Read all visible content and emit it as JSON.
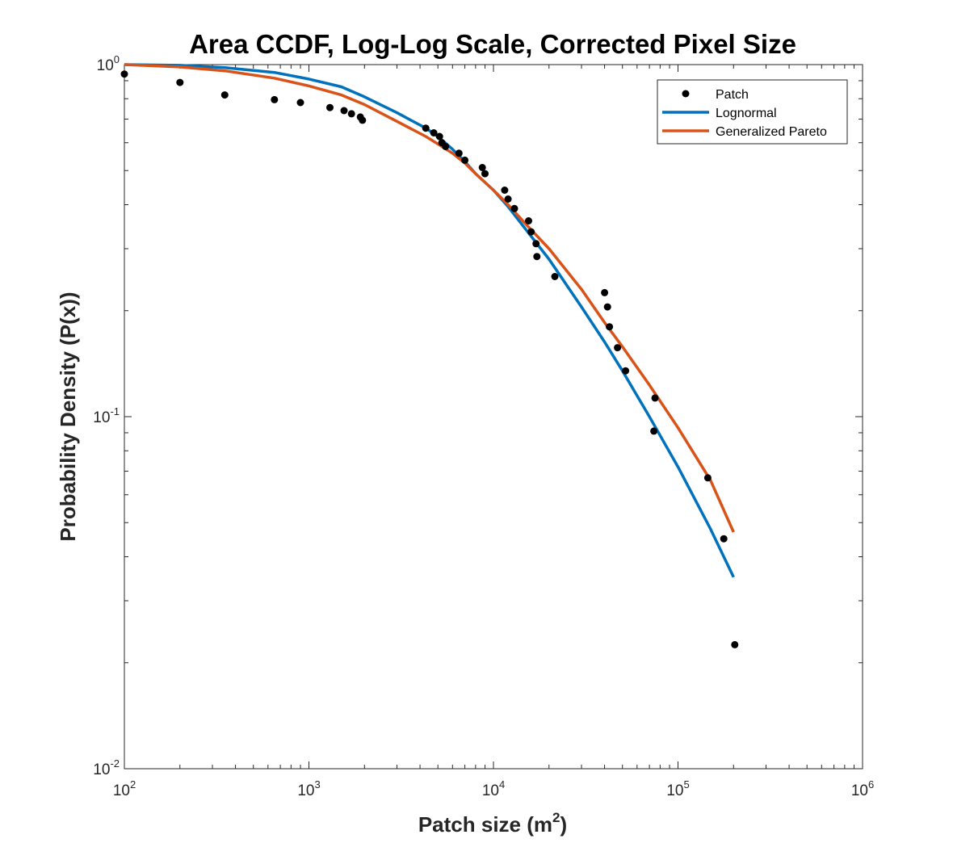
{
  "chart_data": {
    "type": "scatter",
    "title": "Area CCDF, Log-Log Scale, Corrected Pixel Size",
    "xlabel": {
      "text": "Patch size (m",
      "sup": "2",
      "tail": ")"
    },
    "ylabel": "Probability Density (P(x))",
    "xscale": "log",
    "yscale": "log",
    "xlim": [
      100,
      1000000
    ],
    "ylim": [
      0.01,
      1
    ],
    "x_ticks": [
      {
        "value": 100,
        "base": "10",
        "exp": "2"
      },
      {
        "value": 1000,
        "base": "10",
        "exp": "3"
      },
      {
        "value": 10000,
        "base": "10",
        "exp": "4"
      },
      {
        "value": 100000,
        "base": "10",
        "exp": "5"
      },
      {
        "value": 1000000,
        "base": "10",
        "exp": "6"
      }
    ],
    "y_ticks": [
      {
        "value": 0.01,
        "base": "10",
        "exp": "-2"
      },
      {
        "value": 0.1,
        "base": "10",
        "exp": "-1"
      },
      {
        "value": 1,
        "base": "10",
        "exp": "0"
      }
    ],
    "grid": false,
    "legend_position": "top-right",
    "series": [
      {
        "name": "Patch",
        "kind": "markers",
        "color": "#000000",
        "points": [
          [
            100,
            0.94
          ],
          [
            200,
            0.89
          ],
          [
            350,
            0.82
          ],
          [
            650,
            0.795
          ],
          [
            900,
            0.78
          ],
          [
            1300,
            0.755
          ],
          [
            1550,
            0.74
          ],
          [
            1700,
            0.725
          ],
          [
            1900,
            0.71
          ],
          [
            1950,
            0.695
          ],
          [
            4300,
            0.66
          ],
          [
            4750,
            0.64
          ],
          [
            5100,
            0.625
          ],
          [
            5250,
            0.6
          ],
          [
            5500,
            0.585
          ],
          [
            6500,
            0.56
          ],
          [
            7000,
            0.535
          ],
          [
            8700,
            0.51
          ],
          [
            9000,
            0.49
          ],
          [
            11500,
            0.44
          ],
          [
            12000,
            0.415
          ],
          [
            13000,
            0.39
          ],
          [
            15500,
            0.36
          ],
          [
            16000,
            0.335
          ],
          [
            17000,
            0.31
          ],
          [
            17200,
            0.285
          ],
          [
            21500,
            0.25
          ],
          [
            40000,
            0.225
          ],
          [
            41500,
            0.205
          ],
          [
            42500,
            0.18
          ],
          [
            47000,
            0.157
          ],
          [
            52000,
            0.135
          ],
          [
            75000,
            0.113
          ],
          [
            74000,
            0.091
          ],
          [
            145000,
            0.067
          ],
          [
            177000,
            0.045
          ],
          [
            203000,
            0.0225
          ]
        ]
      },
      {
        "name": "Lognormal",
        "kind": "line",
        "color": "#0072BD",
        "points": [
          [
            100,
            1.0
          ],
          [
            200,
            0.995
          ],
          [
            350,
            0.98
          ],
          [
            650,
            0.95
          ],
          [
            1000,
            0.91
          ],
          [
            1500,
            0.865
          ],
          [
            2000,
            0.81
          ],
          [
            3000,
            0.73
          ],
          [
            4300,
            0.66
          ],
          [
            5000,
            0.625
          ],
          [
            6000,
            0.575
          ],
          [
            7000,
            0.53
          ],
          [
            8000,
            0.49
          ],
          [
            10000,
            0.44
          ],
          [
            12000,
            0.395
          ],
          [
            15000,
            0.34
          ],
          [
            20000,
            0.28
          ],
          [
            30000,
            0.205
          ],
          [
            40000,
            0.163
          ],
          [
            50000,
            0.135
          ],
          [
            70000,
            0.1
          ],
          [
            100000,
            0.072
          ],
          [
            150000,
            0.048
          ],
          [
            200000,
            0.035
          ]
        ]
      },
      {
        "name": "Generalized Pareto",
        "kind": "line",
        "color": "#D95319",
        "points": [
          [
            100,
            1.0
          ],
          [
            200,
            0.985
          ],
          [
            350,
            0.96
          ],
          [
            650,
            0.915
          ],
          [
            1000,
            0.87
          ],
          [
            1500,
            0.82
          ],
          [
            2000,
            0.77
          ],
          [
            3000,
            0.69
          ],
          [
            4300,
            0.625
          ],
          [
            5000,
            0.595
          ],
          [
            6000,
            0.56
          ],
          [
            7000,
            0.525
          ],
          [
            8000,
            0.49
          ],
          [
            10000,
            0.44
          ],
          [
            12000,
            0.4
          ],
          [
            15000,
            0.352
          ],
          [
            20000,
            0.3
          ],
          [
            30000,
            0.23
          ],
          [
            40000,
            0.185
          ],
          [
            50000,
            0.158
          ],
          [
            70000,
            0.123
          ],
          [
            100000,
            0.093
          ],
          [
            150000,
            0.066
          ],
          [
            200000,
            0.047
          ]
        ]
      }
    ]
  }
}
